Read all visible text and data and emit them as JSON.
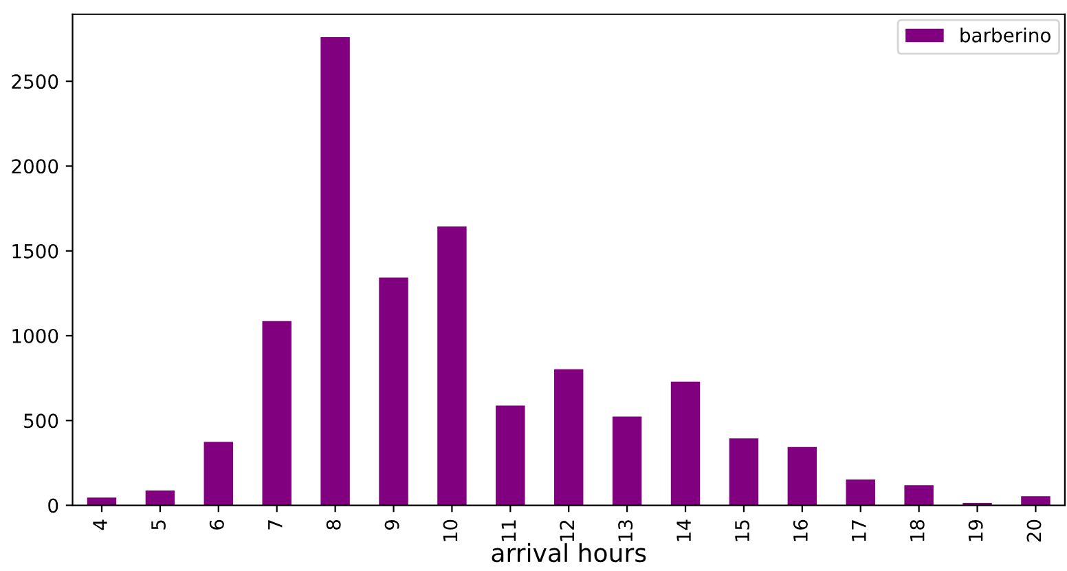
{
  "chart_data": {
    "type": "bar",
    "xlabel": "arrival hours",
    "categories": [
      "4",
      "5",
      "6",
      "7",
      "8",
      "9",
      "10",
      "11",
      "12",
      "13",
      "14",
      "15",
      "16",
      "17",
      "18",
      "19",
      "20"
    ],
    "series": [
      {
        "name": "barberino",
        "color": "#800080",
        "values": [
          46,
          87,
          374,
          1086,
          2760,
          1343,
          1644,
          588,
          802,
          523,
          729,
          395,
          344,
          152,
          119,
          14,
          54
        ]
      }
    ],
    "ylim": [
      0,
      2895
    ],
    "yticks": [
      0,
      500,
      1000,
      1500,
      2000,
      2500
    ],
    "grid": false,
    "legend": "top right"
  }
}
